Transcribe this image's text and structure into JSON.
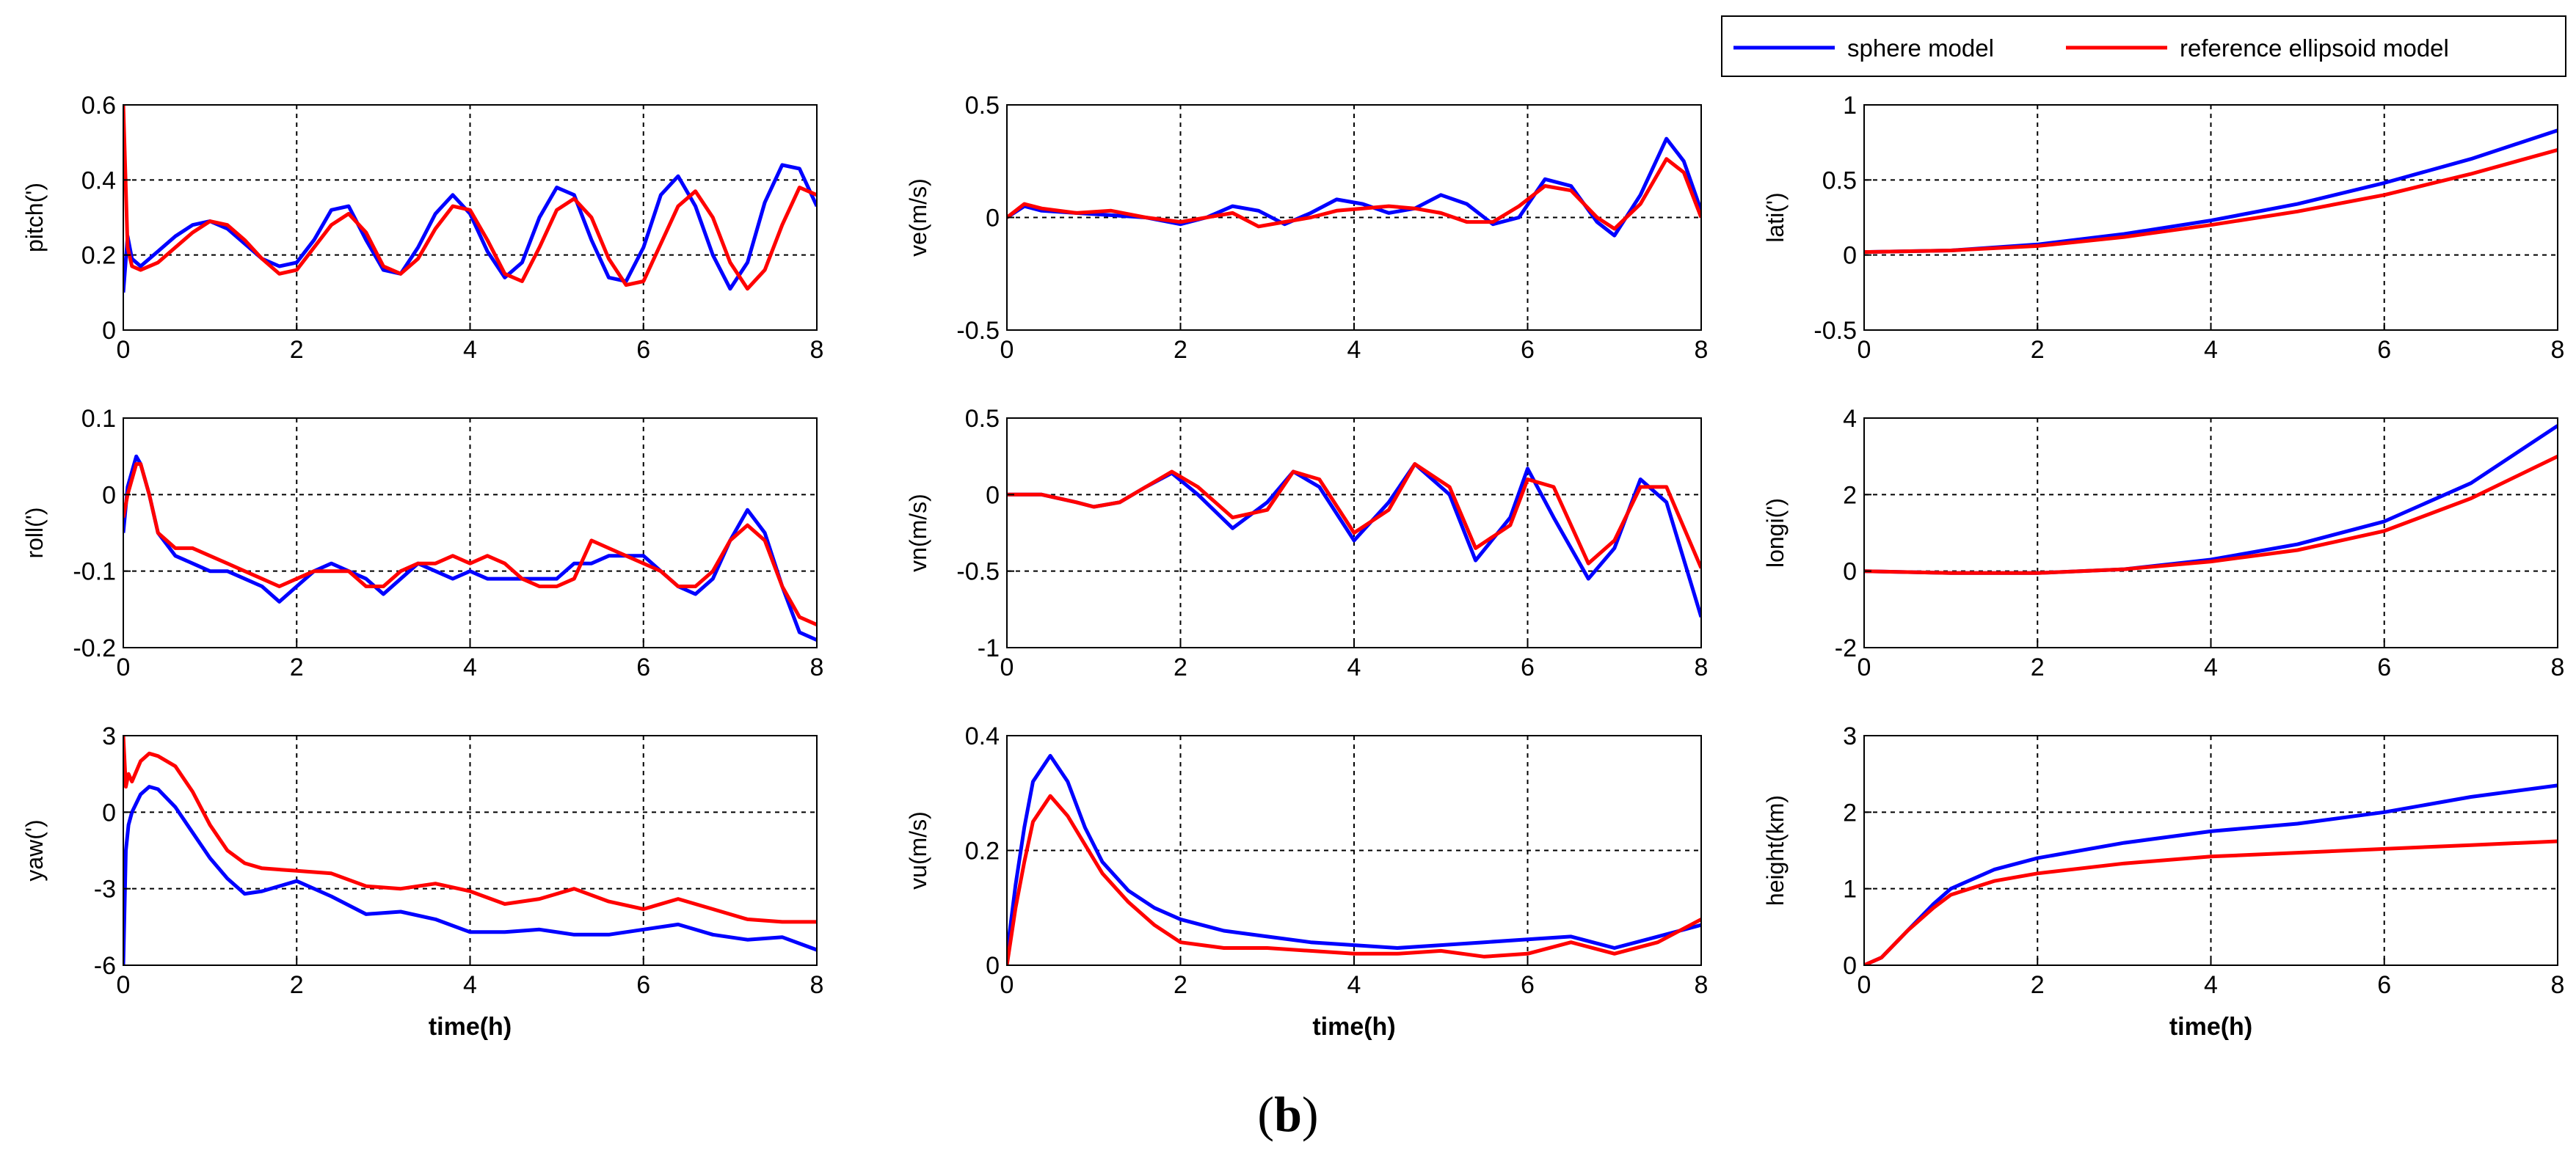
{
  "caption": "(b)",
  "legend": {
    "entries": [
      {
        "label": "sphere model",
        "color": "#0000ff"
      },
      {
        "label": "reference ellipsoid model",
        "color": "#ff0000"
      }
    ]
  },
  "colors": {
    "sphere": "#0000ff",
    "ellipsoid": "#ff0000"
  },
  "chart_data": [
    {
      "type": "line",
      "ylabel": "pitch(')",
      "xlabel": "",
      "xlim": [
        0,
        8
      ],
      "ylim": [
        0,
        0.6
      ],
      "xticks": [
        "0",
        "2",
        "4",
        "6",
        "8"
      ],
      "yticks": [
        "0",
        "0.2",
        "0.4",
        "0.6"
      ],
      "grid": true,
      "x": [
        0,
        0.05,
        0.1,
        0.2,
        0.4,
        0.6,
        0.8,
        1.0,
        1.2,
        1.4,
        1.6,
        1.8,
        2.0,
        2.2,
        2.4,
        2.6,
        2.8,
        3.0,
        3.2,
        3.4,
        3.6,
        3.8,
        4.0,
        4.2,
        4.4,
        4.6,
        4.8,
        5.0,
        5.2,
        5.4,
        5.6,
        5.8,
        6.0,
        6.2,
        6.4,
        6.6,
        6.8,
        7.0,
        7.2,
        7.4,
        7.6,
        7.8,
        8.0
      ],
      "series": [
        {
          "name": "sphere model",
          "values": [
            0.1,
            0.25,
            0.19,
            0.17,
            0.21,
            0.25,
            0.28,
            0.29,
            0.27,
            0.23,
            0.19,
            0.17,
            0.18,
            0.24,
            0.32,
            0.33,
            0.24,
            0.16,
            0.15,
            0.22,
            0.31,
            0.36,
            0.31,
            0.21,
            0.14,
            0.18,
            0.3,
            0.38,
            0.36,
            0.24,
            0.14,
            0.13,
            0.22,
            0.36,
            0.41,
            0.33,
            0.2,
            0.11,
            0.18,
            0.34,
            0.44,
            0.43,
            0.33
          ]
        },
        {
          "name": "reference ellipsoid model",
          "values": [
            0.6,
            0.22,
            0.17,
            0.16,
            0.18,
            0.22,
            0.26,
            0.29,
            0.28,
            0.24,
            0.19,
            0.15,
            0.16,
            0.22,
            0.28,
            0.31,
            0.26,
            0.17,
            0.15,
            0.19,
            0.27,
            0.33,
            0.32,
            0.24,
            0.15,
            0.13,
            0.22,
            0.32,
            0.35,
            0.3,
            0.19,
            0.12,
            0.13,
            0.23,
            0.33,
            0.37,
            0.3,
            0.18,
            0.11,
            0.16,
            0.28,
            0.38,
            0.36
          ]
        }
      ]
    },
    {
      "type": "line",
      "ylabel": "ve(m/s)",
      "xlabel": "",
      "xlim": [
        0,
        8
      ],
      "ylim": [
        -0.5,
        0.5
      ],
      "xticks": [
        "0",
        "2",
        "4",
        "6",
        "8"
      ],
      "yticks": [
        "-0.5",
        "0",
        "0.5"
      ],
      "grid": true,
      "x": [
        0,
        0.2,
        0.4,
        0.8,
        1.2,
        1.6,
        2.0,
        2.3,
        2.6,
        2.9,
        3.2,
        3.5,
        3.8,
        4.1,
        4.4,
        4.7,
        5.0,
        5.3,
        5.6,
        5.9,
        6.2,
        6.5,
        6.8,
        7.0,
        7.3,
        7.6,
        7.8,
        8.0
      ],
      "series": [
        {
          "name": "sphere model",
          "values": [
            0.0,
            0.05,
            0.03,
            0.02,
            0.01,
            0.0,
            -0.03,
            0.0,
            0.05,
            0.03,
            -0.03,
            0.02,
            0.08,
            0.06,
            0.02,
            0.04,
            0.1,
            0.06,
            -0.03,
            0.0,
            0.17,
            0.14,
            -0.02,
            -0.08,
            0.1,
            0.35,
            0.25,
            0.03
          ]
        },
        {
          "name": "reference ellipsoid model",
          "values": [
            0.0,
            0.06,
            0.04,
            0.02,
            0.03,
            0.0,
            -0.02,
            0.0,
            0.02,
            -0.04,
            -0.02,
            0.0,
            0.03,
            0.04,
            0.05,
            0.04,
            0.02,
            -0.02,
            -0.02,
            0.05,
            0.14,
            0.12,
            0.0,
            -0.05,
            0.06,
            0.26,
            0.2,
            0.0
          ]
        }
      ]
    },
    {
      "type": "line",
      "ylabel": "lati(')",
      "xlabel": "",
      "xlim": [
        0,
        8
      ],
      "ylim": [
        -0.5,
        1
      ],
      "xticks": [
        "0",
        "2",
        "4",
        "6",
        "8"
      ],
      "yticks": [
        "-0.5",
        "0",
        "0.5",
        "1"
      ],
      "grid": true,
      "x": [
        0,
        1,
        2,
        3,
        4,
        5,
        6,
        7,
        8
      ],
      "series": [
        {
          "name": "sphere model",
          "values": [
            0.02,
            0.03,
            0.07,
            0.14,
            0.23,
            0.34,
            0.48,
            0.64,
            0.83
          ]
        },
        {
          "name": "reference ellipsoid model",
          "values": [
            0.02,
            0.03,
            0.06,
            0.12,
            0.2,
            0.29,
            0.4,
            0.54,
            0.7
          ]
        }
      ]
    },
    {
      "type": "line",
      "ylabel": "roll(')",
      "xlabel": "",
      "xlim": [
        0,
        8
      ],
      "ylim": [
        -0.2,
        0.1
      ],
      "xticks": [
        "0",
        "2",
        "4",
        "6",
        "8"
      ],
      "yticks": [
        "-0.2",
        "-0.1",
        "0",
        "0.1"
      ],
      "grid": true,
      "x": [
        0,
        0.05,
        0.1,
        0.15,
        0.2,
        0.3,
        0.4,
        0.6,
        0.8,
        1.0,
        1.2,
        1.4,
        1.6,
        1.8,
        2.0,
        2.2,
        2.4,
        2.6,
        2.8,
        3.0,
        3.2,
        3.4,
        3.6,
        3.8,
        4.0,
        4.2,
        4.4,
        4.6,
        4.8,
        5.0,
        5.2,
        5.4,
        5.6,
        5.8,
        6.0,
        6.2,
        6.4,
        6.6,
        6.8,
        7.0,
        7.2,
        7.4,
        7.6,
        7.8,
        8.0
      ],
      "series": [
        {
          "name": "sphere model",
          "values": [
            -0.05,
            0.01,
            0.03,
            0.05,
            0.04,
            0.0,
            -0.05,
            -0.08,
            -0.09,
            -0.1,
            -0.1,
            -0.11,
            -0.12,
            -0.14,
            -0.12,
            -0.1,
            -0.09,
            -0.1,
            -0.11,
            -0.13,
            -0.11,
            -0.09,
            -0.1,
            -0.11,
            -0.1,
            -0.11,
            -0.11,
            -0.11,
            -0.11,
            -0.11,
            -0.09,
            -0.09,
            -0.08,
            -0.08,
            -0.08,
            -0.1,
            -0.12,
            -0.13,
            -0.11,
            -0.06,
            -0.02,
            -0.05,
            -0.12,
            -0.18,
            -0.19
          ]
        },
        {
          "name": "reference ellipsoid model",
          "values": [
            -0.03,
            0.0,
            0.02,
            0.04,
            0.04,
            0.0,
            -0.05,
            -0.07,
            -0.07,
            -0.08,
            -0.09,
            -0.1,
            -0.11,
            -0.12,
            -0.11,
            -0.1,
            -0.1,
            -0.1,
            -0.12,
            -0.12,
            -0.1,
            -0.09,
            -0.09,
            -0.08,
            -0.09,
            -0.08,
            -0.09,
            -0.11,
            -0.12,
            -0.12,
            -0.11,
            -0.06,
            -0.07,
            -0.08,
            -0.09,
            -0.1,
            -0.12,
            -0.12,
            -0.1,
            -0.06,
            -0.04,
            -0.06,
            -0.12,
            -0.16,
            -0.17
          ]
        }
      ]
    },
    {
      "type": "line",
      "ylabel": "vn(m/s)",
      "xlabel": "",
      "xlim": [
        0,
        8
      ],
      "ylim": [
        -1,
        0.5
      ],
      "xticks": [
        "0",
        "2",
        "4",
        "6",
        "8"
      ],
      "yticks": [
        "-1",
        "-0.5",
        "0",
        "0.5"
      ],
      "grid": true,
      "x": [
        0,
        0.4,
        0.8,
        1.0,
        1.3,
        1.6,
        1.9,
        2.2,
        2.6,
        3.0,
        3.3,
        3.6,
        4.0,
        4.4,
        4.7,
        5.1,
        5.4,
        5.8,
        6.0,
        6.3,
        6.7,
        7.0,
        7.3,
        7.6,
        8.0
      ],
      "series": [
        {
          "name": "sphere model",
          "values": [
            0.0,
            0.0,
            -0.05,
            -0.08,
            -0.05,
            0.05,
            0.14,
            0.0,
            -0.22,
            -0.05,
            0.15,
            0.05,
            -0.3,
            -0.05,
            0.2,
            0.0,
            -0.43,
            -0.15,
            0.17,
            -0.15,
            -0.55,
            -0.35,
            0.1,
            -0.05,
            -0.8
          ]
        },
        {
          "name": "reference ellipsoid model",
          "values": [
            0.0,
            0.0,
            -0.05,
            -0.08,
            -0.05,
            0.05,
            0.15,
            0.05,
            -0.15,
            -0.1,
            0.15,
            0.1,
            -0.25,
            -0.1,
            0.2,
            0.05,
            -0.35,
            -0.2,
            0.1,
            0.05,
            -0.45,
            -0.3,
            0.05,
            0.05,
            -0.48
          ]
        }
      ]
    },
    {
      "type": "line",
      "ylabel": "longi(')",
      "xlabel": "",
      "xlim": [
        0,
        8
      ],
      "ylim": [
        -2,
        4
      ],
      "xticks": [
        "0",
        "2",
        "4",
        "6",
        "8"
      ],
      "yticks": [
        "-2",
        "0",
        "2",
        "4"
      ],
      "grid": true,
      "x": [
        0,
        1,
        2,
        3,
        4,
        5,
        6,
        7,
        8
      ],
      "series": [
        {
          "name": "sphere model",
          "values": [
            0.0,
            -0.05,
            -0.05,
            0.05,
            0.3,
            0.7,
            1.3,
            2.3,
            3.8
          ]
        },
        {
          "name": "reference ellipsoid model",
          "values": [
            0.0,
            -0.05,
            -0.05,
            0.05,
            0.25,
            0.55,
            1.05,
            1.9,
            3.0
          ]
        }
      ]
    },
    {
      "type": "line",
      "ylabel": "yaw(')",
      "xlabel": "time(h)",
      "xlim": [
        0,
        8
      ],
      "ylim": [
        -6,
        3
      ],
      "xticks": [
        "0",
        "2",
        "4",
        "6",
        "8"
      ],
      "yticks": [
        "-6",
        "-3",
        "0",
        "3"
      ],
      "grid": true,
      "x": [
        0,
        0.03,
        0.06,
        0.1,
        0.2,
        0.3,
        0.4,
        0.6,
        0.8,
        1.0,
        1.2,
        1.4,
        1.6,
        2.0,
        2.4,
        2.8,
        3.2,
        3.6,
        4.0,
        4.4,
        4.8,
        5.2,
        5.6,
        6.0,
        6.4,
        6.8,
        7.2,
        7.6,
        8.0
      ],
      "series": [
        {
          "name": "sphere model",
          "values": [
            -6.0,
            -1.5,
            -0.5,
            0.0,
            0.7,
            1.0,
            0.9,
            0.2,
            -0.8,
            -1.8,
            -2.6,
            -3.2,
            -3.1,
            -2.7,
            -3.3,
            -4.0,
            -3.9,
            -4.2,
            -4.7,
            -4.7,
            -4.6,
            -4.8,
            -4.8,
            -4.6,
            -4.4,
            -4.8,
            -5.0,
            -4.9,
            -5.4
          ]
        },
        {
          "name": "reference ellipsoid model",
          "values": [
            3.0,
            1.0,
            1.5,
            1.2,
            2.0,
            2.3,
            2.2,
            1.8,
            0.8,
            -0.5,
            -1.5,
            -2.0,
            -2.2,
            -2.3,
            -2.4,
            -2.9,
            -3.0,
            -2.8,
            -3.1,
            -3.6,
            -3.4,
            -3.0,
            -3.5,
            -3.8,
            -3.4,
            -3.8,
            -4.2,
            -4.3,
            -4.3
          ]
        }
      ]
    },
    {
      "type": "line",
      "ylabel": "vu(m/s)",
      "xlabel": "time(h)",
      "xlim": [
        0,
        8
      ],
      "ylim": [
        0,
        0.4
      ],
      "xticks": [
        "0",
        "2",
        "4",
        "6",
        "8"
      ],
      "yticks": [
        "0",
        "0.2",
        "0.4"
      ],
      "grid": true,
      "x": [
        0,
        0.1,
        0.2,
        0.3,
        0.5,
        0.7,
        0.9,
        1.1,
        1.4,
        1.7,
        2.0,
        2.5,
        3.0,
        3.5,
        4.0,
        4.5,
        5.0,
        5.5,
        6.0,
        6.5,
        7.0,
        7.5,
        8.0
      ],
      "series": [
        {
          "name": "sphere model",
          "values": [
            0.02,
            0.14,
            0.24,
            0.32,
            0.365,
            0.32,
            0.24,
            0.18,
            0.13,
            0.1,
            0.08,
            0.06,
            0.05,
            0.04,
            0.035,
            0.03,
            0.035,
            0.04,
            0.045,
            0.05,
            0.03,
            0.05,
            0.07
          ]
        },
        {
          "name": "reference ellipsoid model",
          "values": [
            0.0,
            0.1,
            0.18,
            0.25,
            0.295,
            0.26,
            0.21,
            0.16,
            0.11,
            0.07,
            0.04,
            0.03,
            0.03,
            0.025,
            0.02,
            0.02,
            0.025,
            0.015,
            0.02,
            0.04,
            0.02,
            0.04,
            0.08
          ]
        }
      ]
    },
    {
      "type": "line",
      "ylabel": "height(km)",
      "xlabel": "time(h)",
      "xlim": [
        0,
        8
      ],
      "ylim": [
        0,
        3
      ],
      "xticks": [
        "0",
        "2",
        "4",
        "6",
        "8"
      ],
      "yticks": [
        "0",
        "1",
        "2",
        "3"
      ],
      "grid": true,
      "x": [
        0,
        0.2,
        0.5,
        0.8,
        1.0,
        1.5,
        2.0,
        3.0,
        4.0,
        5.0,
        6.0,
        7.0,
        8.0
      ],
      "series": [
        {
          "name": "sphere model",
          "values": [
            0.0,
            0.1,
            0.45,
            0.8,
            1.0,
            1.25,
            1.4,
            1.6,
            1.75,
            1.85,
            2.0,
            2.2,
            2.35
          ]
        },
        {
          "name": "reference ellipsoid model",
          "values": [
            0.0,
            0.1,
            0.45,
            0.75,
            0.92,
            1.1,
            1.2,
            1.33,
            1.42,
            1.47,
            1.52,
            1.57,
            1.62
          ]
        }
      ]
    }
  ]
}
